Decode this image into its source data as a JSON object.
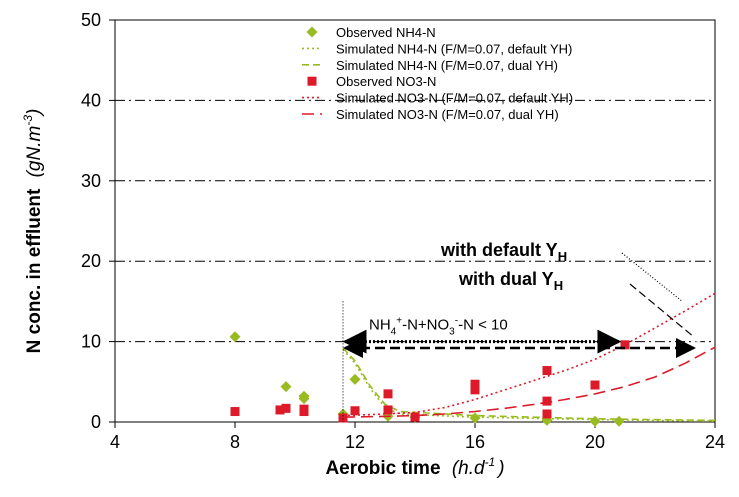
{
  "chart_data": {
    "type": "scatter",
    "xlabel": "Aerobic time",
    "xlabel_unit": "(h.d",
    "xlabel_unit_sup": "-1",
    "xlabel_unit_close": ")",
    "ylabel": "N conc. in effluent",
    "ylabel_unit": "(gN.m",
    "ylabel_unit_sup": "-3",
    "ylabel_unit_close": ")",
    "xlim": [
      4,
      24
    ],
    "ylim": [
      0,
      50
    ],
    "xticks": [
      4,
      8,
      12,
      16,
      20,
      24
    ],
    "yticks": [
      0,
      10,
      20,
      30,
      40,
      50
    ],
    "grid": "horizontal dash-dot",
    "legend_position": "top-center",
    "series": [
      {
        "name": "Observed NH4-N",
        "kind": "points",
        "marker": "diamond",
        "color": "#99bb22",
        "points": [
          [
            8.0,
            10.6
          ],
          [
            9.7,
            4.4
          ],
          [
            10.3,
            3.2
          ],
          [
            10.3,
            2.9
          ],
          [
            11.6,
            1.0
          ],
          [
            12.0,
            5.3
          ],
          [
            13.1,
            0.7
          ],
          [
            14.0,
            0.6
          ],
          [
            16.0,
            0.5
          ],
          [
            18.4,
            0.2
          ],
          [
            20.0,
            0.1
          ],
          [
            20.8,
            0.1
          ]
        ]
      },
      {
        "name": "Simulated NH4-N (F/M=0.07, default YH)",
        "kind": "line",
        "dash": "2,3",
        "color": "#99bb22",
        "points": [
          [
            11.6,
            9.0
          ],
          [
            12.0,
            7.3
          ],
          [
            12.5,
            4.2
          ],
          [
            13.0,
            1.8
          ],
          [
            13.5,
            1.0
          ],
          [
            16,
            0.6
          ],
          [
            20,
            0.3
          ],
          [
            24,
            0.1
          ]
        ]
      },
      {
        "name": "Simulated NH4-N (F/M=0.07, dual YH)",
        "kind": "line",
        "dash": "7,4",
        "color": "#99bb22",
        "points": [
          [
            11.6,
            9.2
          ],
          [
            12.0,
            7.6
          ],
          [
            12.5,
            4.5
          ],
          [
            13.0,
            2.2
          ],
          [
            13.5,
            1.3
          ],
          [
            16,
            0.8
          ],
          [
            20,
            0.4
          ],
          [
            24,
            0.2
          ]
        ]
      },
      {
        "name": "Observed NO3-N",
        "kind": "points",
        "marker": "square",
        "color": "#dd1a2a",
        "points": [
          [
            8.0,
            1.3
          ],
          [
            9.5,
            1.5
          ],
          [
            9.7,
            1.7
          ],
          [
            10.3,
            1.3
          ],
          [
            10.3,
            1.6
          ],
          [
            11.6,
            0.5
          ],
          [
            12.0,
            1.4
          ],
          [
            13.1,
            3.5
          ],
          [
            13.1,
            1.5
          ],
          [
            14.0,
            0.6
          ],
          [
            16.0,
            4.7
          ],
          [
            16.0,
            4.0
          ],
          [
            18.4,
            6.4
          ],
          [
            18.4,
            2.6
          ],
          [
            18.4,
            1.0
          ],
          [
            20.0,
            4.6
          ],
          [
            21.0,
            9.6
          ]
        ]
      },
      {
        "name": "Simulated NO3-N (F/M=0.07, default YH)",
        "kind": "line",
        "dash": "2,3",
        "color": "#dd1a2a",
        "points": [
          [
            11.6,
            0.8
          ],
          [
            13,
            1.0
          ],
          [
            14,
            1.2
          ],
          [
            15,
            1.8
          ],
          [
            16,
            2.8
          ],
          [
            17,
            4.0
          ],
          [
            18,
            5.2
          ],
          [
            19,
            6.4
          ],
          [
            20,
            7.8
          ],
          [
            21,
            9.6
          ],
          [
            22,
            11.7
          ],
          [
            23,
            13.8
          ],
          [
            24,
            16.0
          ]
        ]
      },
      {
        "name": "Simulated NO3-N (F/M=0.07, dual YH)",
        "kind": "line",
        "dash": "12,6",
        "color": "#dd1a2a",
        "points": [
          [
            11.6,
            0.6
          ],
          [
            13,
            0.7
          ],
          [
            14,
            0.8
          ],
          [
            15,
            1.0
          ],
          [
            16,
            1.3
          ],
          [
            17,
            1.7
          ],
          [
            18,
            2.2
          ],
          [
            19,
            2.8
          ],
          [
            20,
            3.5
          ],
          [
            21,
            4.4
          ],
          [
            22,
            5.6
          ],
          [
            23,
            7.3
          ],
          [
            24,
            9.3
          ]
        ]
      }
    ],
    "annotations": {
      "default_label_pre": "with default Y",
      "default_label_sub": "H",
      "dual_label_pre": "with dual Y",
      "dual_label_sub": "H",
      "range_label_parts": [
        "NH",
        "4",
        "+",
        "-N+NO",
        "3",
        "-",
        "-N < 10"
      ],
      "range_start_x": 11.6,
      "range_end_default_x": 20.8,
      "range_end_dual_x": 23.3,
      "range_y_default": 10,
      "range_y_dual": 9.2
    }
  }
}
